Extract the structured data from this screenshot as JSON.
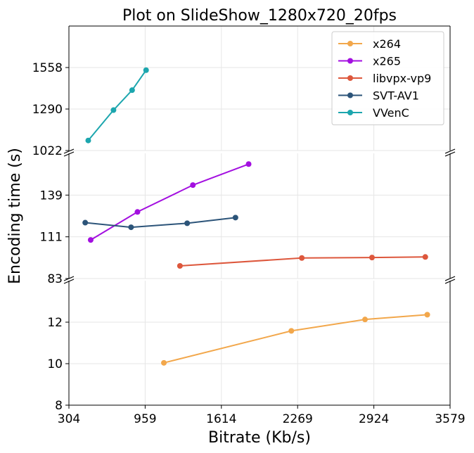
{
  "chart_data": {
    "type": "line",
    "title": "Plot on SlideShow_1280x720_20fps",
    "xlabel": "Bitrate (Kb/s)",
    "ylabel": "Encoding time (s)",
    "x_ticks": [
      "304",
      "959",
      "1614",
      "2269",
      "2924",
      "3579"
    ],
    "xlim": [
      304,
      3579
    ],
    "grid": true,
    "legend_position": "top-right",
    "broken_y_axis": true,
    "panels": [
      {
        "name": "top",
        "ylim": [
          1022,
          1826
        ],
        "y_ticks": [
          "1022",
          "1290",
          "1558"
        ]
      },
      {
        "name": "middle",
        "ylim": [
          83,
          167
        ],
        "y_ticks": [
          "83",
          "111",
          "139"
        ]
      },
      {
        "name": "bottom",
        "ylim": [
          8,
          14
        ],
        "y_ticks": [
          "8",
          "10",
          "12"
        ]
      }
    ],
    "series": [
      {
        "name": "x264",
        "color": "#f2a74b",
        "panel": "bottom",
        "points": [
          [
            1120,
            10.04
          ],
          [
            2215,
            11.58
          ],
          [
            2848,
            12.13
          ],
          [
            3383,
            12.36
          ]
        ]
      },
      {
        "name": "x265",
        "color": "#a30fe0",
        "panel": "middle",
        "points": [
          [
            491,
            108.9
          ],
          [
            893,
            127.7
          ],
          [
            1369,
            145.7
          ],
          [
            1848,
            159.8
          ]
        ]
      },
      {
        "name": "libvpx-vp9",
        "color": "#dd573c",
        "panel": "middle",
        "points": [
          [
            1258,
            91.5
          ],
          [
            2305,
            96.8
          ],
          [
            2908,
            97.1
          ],
          [
            3366,
            97.5
          ]
        ]
      },
      {
        "name": "SVT-AV1",
        "color": "#2c5479",
        "panel": "middle",
        "points": [
          [
            444,
            120.5
          ],
          [
            838,
            117.4
          ],
          [
            1320,
            120.1
          ],
          [
            1735,
            123.9
          ]
        ]
      },
      {
        "name": "VVenC",
        "color": "#1ca6ae",
        "panel": "top",
        "points": [
          [
            470,
            1087
          ],
          [
            687,
            1283
          ],
          [
            847,
            1412
          ],
          [
            967,
            1541
          ]
        ]
      }
    ]
  }
}
